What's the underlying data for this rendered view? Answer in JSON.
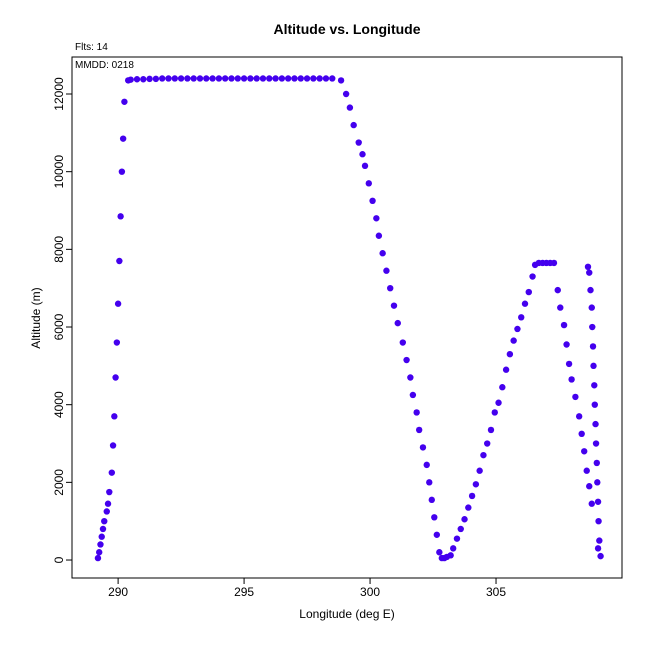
{
  "chart_data": {
    "type": "scatter",
    "title": "Altitude vs. Longitude",
    "annotations": [
      "Flts: 14",
      "MMDD: 0218"
    ],
    "x_label": "Longitude (deg E)",
    "y_label": "Altitude (m)",
    "color": "#4400ee",
    "xlim": [
      288.17,
      310.0
    ],
    "ylim": [
      -463,
      12953
    ],
    "xticks": [
      290,
      295,
      300,
      305
    ],
    "yticks": [
      0,
      2000,
      4000,
      6000,
      8000,
      10000,
      12000
    ],
    "x": [
      289.2,
      289.25,
      289.3,
      289.35,
      289.4,
      289.45,
      289.55,
      289.6,
      289.65,
      289.75,
      289.8,
      289.85,
      289.9,
      289.95,
      290.0,
      290.05,
      290.1,
      290.15,
      290.2,
      290.25,
      290.4,
      290.5,
      290.75,
      291.0,
      291.25,
      291.5,
      291.75,
      292.0,
      292.25,
      292.5,
      292.75,
      293.0,
      293.25,
      293.5,
      293.75,
      294.0,
      294.25,
      294.5,
      294.75,
      295.0,
      295.25,
      295.5,
      295.75,
      296.0,
      296.25,
      296.5,
      296.75,
      297.0,
      297.25,
      297.5,
      297.75,
      298.0,
      298.25,
      298.5,
      298.85,
      299.05,
      299.2,
      299.35,
      299.55,
      299.7,
      299.8,
      299.95,
      300.1,
      300.25,
      300.35,
      300.5,
      300.65,
      300.8,
      300.95,
      301.1,
      301.3,
      301.45,
      301.6,
      301.7,
      301.85,
      301.95,
      302.1,
      302.25,
      302.35,
      302.45,
      302.55,
      302.65,
      302.75,
      302.85,
      302.95,
      303.05,
      303.2,
      303.3,
      303.45,
      303.6,
      303.75,
      303.9,
      304.05,
      304.2,
      304.35,
      304.5,
      304.65,
      304.8,
      304.95,
      305.1,
      305.25,
      305.4,
      305.55,
      305.7,
      305.85,
      306.0,
      306.15,
      306.3,
      306.45,
      306.55,
      306.7,
      306.85,
      307.0,
      307.15,
      307.3,
      307.45,
      307.55,
      307.7,
      307.8,
      307.9,
      308.0,
      308.15,
      308.3,
      308.4,
      308.5,
      308.6,
      308.7,
      308.8,
      308.65,
      308.7,
      308.75,
      308.8,
      308.82,
      308.85,
      308.87,
      308.9,
      308.92,
      308.95,
      308.97,
      309.0,
      309.02,
      309.05,
      309.07,
      309.1,
      309.15,
      309.05
    ],
    "y": [
      50,
      200,
      400,
      600,
      800,
      1000,
      1250,
      1450,
      1750,
      2250,
      2950,
      3700,
      4700,
      5600,
      6600,
      7700,
      8850,
      10000,
      10850,
      11800,
      12350,
      12370,
      12380,
      12380,
      12390,
      12390,
      12400,
      12400,
      12400,
      12400,
      12400,
      12400,
      12400,
      12400,
      12400,
      12400,
      12400,
      12400,
      12400,
      12400,
      12400,
      12400,
      12400,
      12400,
      12400,
      12400,
      12400,
      12400,
      12400,
      12400,
      12400,
      12400,
      12400,
      12400,
      12350,
      12000,
      11650,
      11200,
      10750,
      10450,
      10150,
      9700,
      9250,
      8800,
      8350,
      7900,
      7450,
      7000,
      6550,
      6100,
      5600,
      5150,
      4700,
      4250,
      3800,
      3350,
      2900,
      2450,
      2000,
      1550,
      1100,
      650,
      200,
      50,
      50,
      80,
      120,
      300,
      550,
      800,
      1050,
      1350,
      1650,
      1950,
      2300,
      2700,
      3000,
      3350,
      3800,
      4050,
      4450,
      4900,
      5300,
      5650,
      5950,
      6250,
      6600,
      6900,
      7300,
      7600,
      7650,
      7650,
      7650,
      7650,
      7650,
      6950,
      6500,
      6050,
      5550,
      5050,
      4650,
      4200,
      3700,
      3250,
      2800,
      2300,
      1900,
      1450,
      7550,
      7400,
      6950,
      6500,
      6000,
      5500,
      5000,
      4500,
      4000,
      3500,
      3000,
      2500,
      2000,
      1500,
      1000,
      500,
      100,
      300
    ]
  }
}
